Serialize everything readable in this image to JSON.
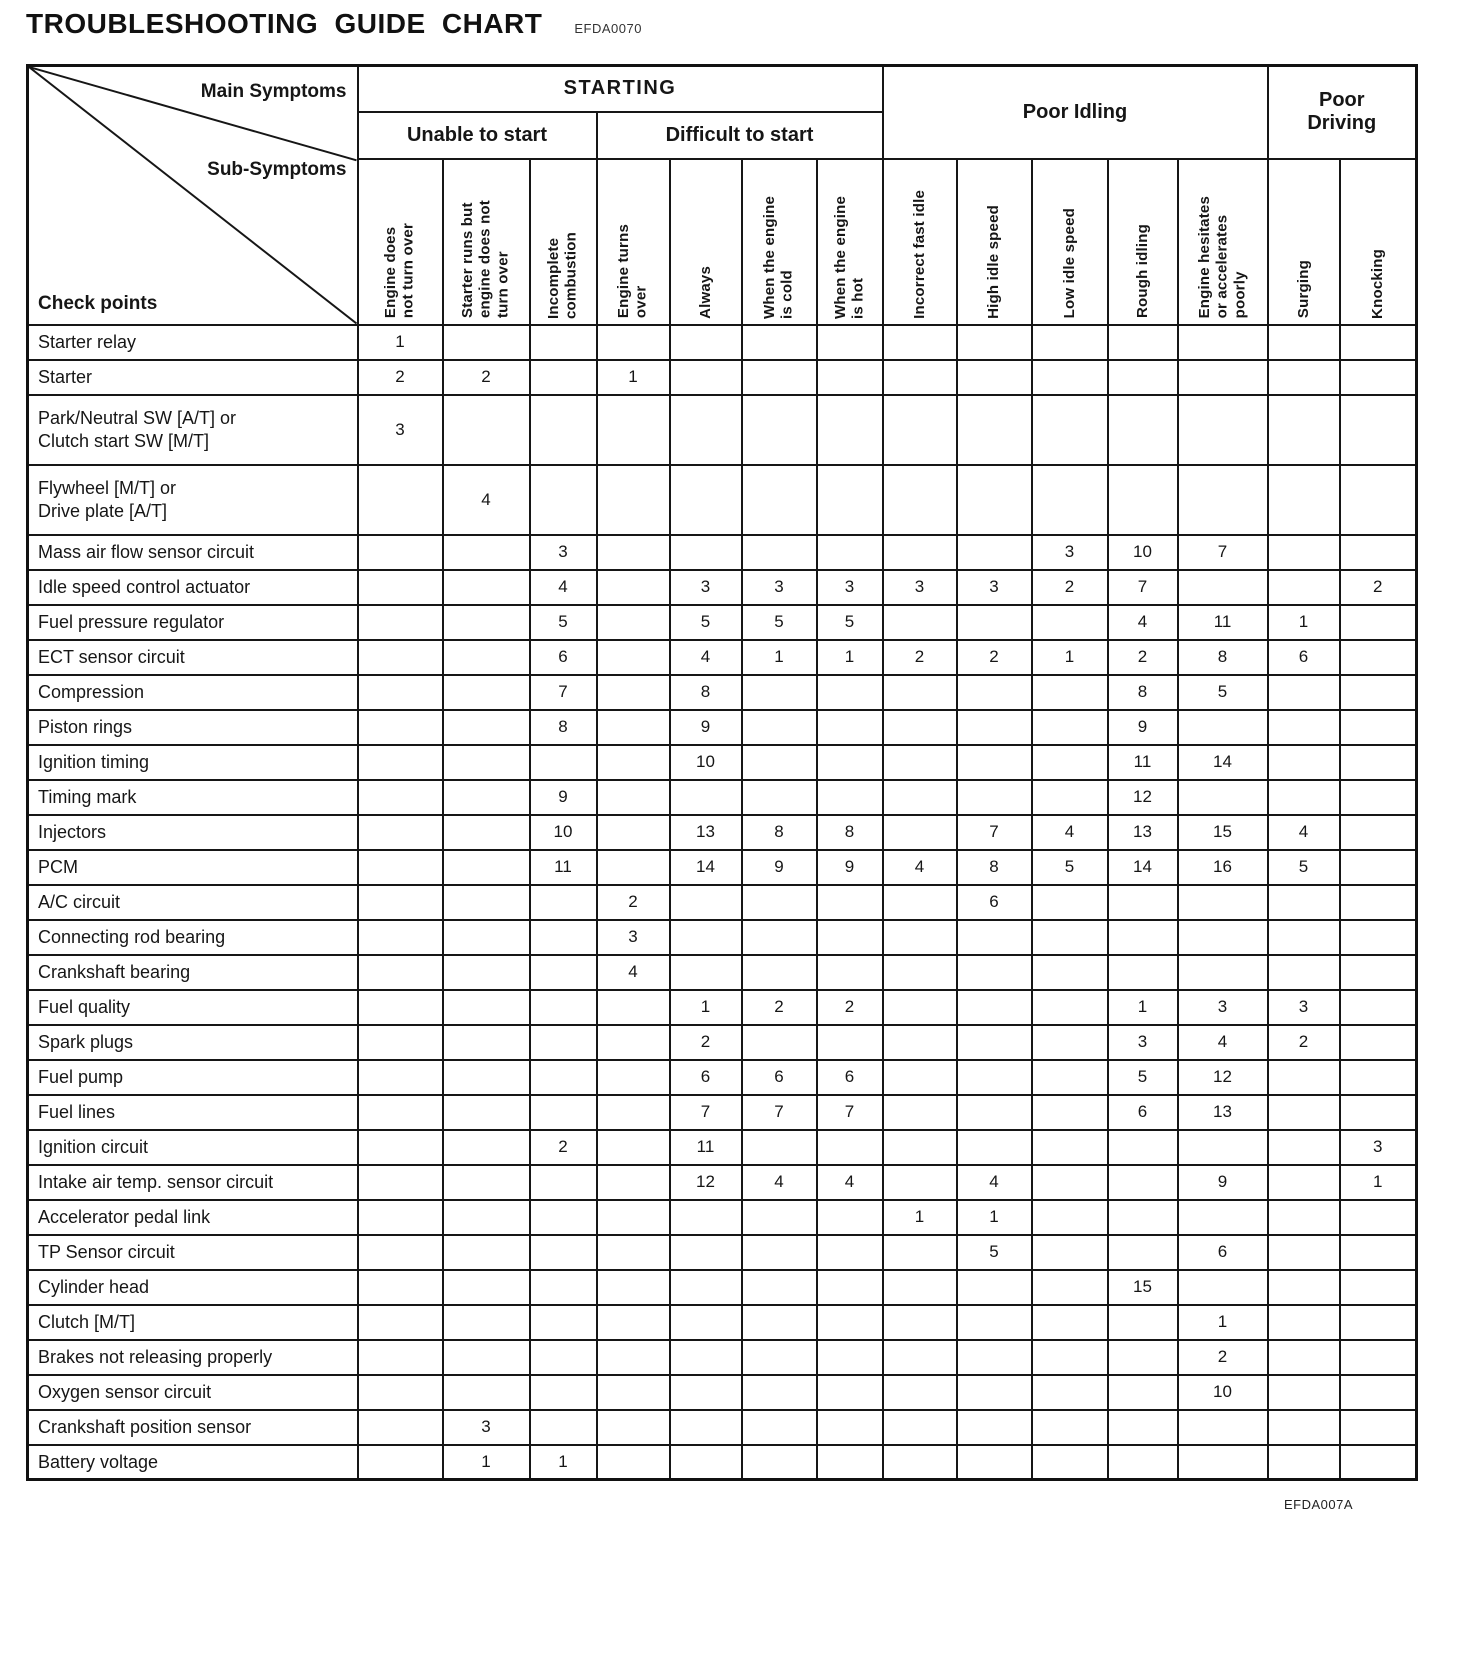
{
  "title": "TROUBLESHOOTING GUIDE CHART",
  "title_code": "EFDA0070",
  "footer_code": "EFDA007A",
  "corner": {
    "main_symptoms": "Main Symptoms",
    "sub_symptoms": "Sub-Symptoms",
    "check_points": "Check points"
  },
  "groups": {
    "starting": "STARTING",
    "unable_to_start": "Unable to start",
    "difficult_to_start": "Difficult to start",
    "poor_idling": "Poor Idling",
    "poor_driving": "Poor\nDriving"
  },
  "columns": [
    "Engine does\nnot turn over",
    "Starter runs but\nengine does not\nturn over",
    "Incomplete\ncombustion",
    "Engine turns\nover",
    "Always",
    "When the engine\nis cold",
    "When the engine\nis hot",
    "Incorrect fast idle",
    "High idle speed",
    "Low idle speed",
    "Rough idling",
    "Engine hesitates\nor accelerates\npoorly",
    "Surging",
    "Knocking"
  ],
  "rows": [
    {
      "label": "Starter relay",
      "values": [
        "1",
        "",
        "",
        "",
        "",
        "",
        "",
        "",
        "",
        "",
        "",
        "",
        "",
        ""
      ]
    },
    {
      "label": "Starter",
      "values": [
        "2",
        "2",
        "",
        "1",
        "",
        "",
        "",
        "",
        "",
        "",
        "",
        "",
        "",
        ""
      ]
    },
    {
      "label": "Park/Neutral SW [A/T] or\nClutch start SW [M/T]",
      "values": [
        "3",
        "",
        "",
        "",
        "",
        "",
        "",
        "",
        "",
        "",
        "",
        "",
        "",
        ""
      ]
    },
    {
      "label": "Flywheel [M/T] or\nDrive plate [A/T]",
      "values": [
        "",
        "4",
        "",
        "",
        "",
        "",
        "",
        "",
        "",
        "",
        "",
        "",
        "",
        ""
      ]
    },
    {
      "label": "Mass air flow sensor circuit",
      "values": [
        "",
        "",
        "3",
        "",
        "",
        "",
        "",
        "",
        "",
        "3",
        "10",
        "7",
        "",
        ""
      ]
    },
    {
      "label": "Idle speed control actuator",
      "values": [
        "",
        "",
        "4",
        "",
        "3",
        "3",
        "3",
        "3",
        "3",
        "2",
        "7",
        "",
        "",
        "2"
      ]
    },
    {
      "label": "Fuel pressure regulator",
      "values": [
        "",
        "",
        "5",
        "",
        "5",
        "5",
        "5",
        "",
        "",
        "",
        "4",
        "11",
        "1",
        ""
      ]
    },
    {
      "label": "ECT sensor circuit",
      "values": [
        "",
        "",
        "6",
        "",
        "4",
        "1",
        "1",
        "2",
        "2",
        "1",
        "2",
        "8",
        "6",
        ""
      ]
    },
    {
      "label": "Compression",
      "values": [
        "",
        "",
        "7",
        "",
        "8",
        "",
        "",
        "",
        "",
        "",
        "8",
        "5",
        "",
        ""
      ]
    },
    {
      "label": "Piston rings",
      "values": [
        "",
        "",
        "8",
        "",
        "9",
        "",
        "",
        "",
        "",
        "",
        "9",
        "",
        "",
        ""
      ]
    },
    {
      "label": "Ignition timing",
      "values": [
        "",
        "",
        "",
        "",
        "10",
        "",
        "",
        "",
        "",
        "",
        "11",
        "14",
        "",
        ""
      ]
    },
    {
      "label": "Timing mark",
      "values": [
        "",
        "",
        "9",
        "",
        "",
        "",
        "",
        "",
        "",
        "",
        "12",
        "",
        "",
        ""
      ]
    },
    {
      "label": "Injectors",
      "values": [
        "",
        "",
        "10",
        "",
        "13",
        "8",
        "8",
        "",
        "7",
        "4",
        "13",
        "15",
        "4",
        ""
      ]
    },
    {
      "label": "PCM",
      "values": [
        "",
        "",
        "11",
        "",
        "14",
        "9",
        "9",
        "4",
        "8",
        "5",
        "14",
        "16",
        "5",
        ""
      ]
    },
    {
      "label": "A/C circuit",
      "values": [
        "",
        "",
        "",
        "2",
        "",
        "",
        "",
        "",
        "6",
        "",
        "",
        "",
        "",
        ""
      ]
    },
    {
      "label": "Connecting rod bearing",
      "values": [
        "",
        "",
        "",
        "3",
        "",
        "",
        "",
        "",
        "",
        "",
        "",
        "",
        "",
        ""
      ]
    },
    {
      "label": "Crankshaft bearing",
      "values": [
        "",
        "",
        "",
        "4",
        "",
        "",
        "",
        "",
        "",
        "",
        "",
        "",
        "",
        ""
      ]
    },
    {
      "label": "Fuel quality",
      "values": [
        "",
        "",
        "",
        "",
        "1",
        "2",
        "2",
        "",
        "",
        "",
        "1",
        "3",
        "3",
        ""
      ]
    },
    {
      "label": "Spark plugs",
      "values": [
        "",
        "",
        "",
        "",
        "2",
        "",
        "",
        "",
        "",
        "",
        "3",
        "4",
        "2",
        ""
      ]
    },
    {
      "label": "Fuel pump",
      "values": [
        "",
        "",
        "",
        "",
        "6",
        "6",
        "6",
        "",
        "",
        "",
        "5",
        "12",
        "",
        ""
      ]
    },
    {
      "label": "Fuel lines",
      "values": [
        "",
        "",
        "",
        "",
        "7",
        "7",
        "7",
        "",
        "",
        "",
        "6",
        "13",
        "",
        ""
      ]
    },
    {
      "label": "Ignition circuit",
      "values": [
        "",
        "",
        "2",
        "",
        "11",
        "",
        "",
        "",
        "",
        "",
        "",
        "",
        "",
        "3"
      ]
    },
    {
      "label": "Intake air temp. sensor circuit",
      "values": [
        "",
        "",
        "",
        "",
        "12",
        "4",
        "4",
        "",
        "4",
        "",
        "",
        "9",
        "",
        "1"
      ]
    },
    {
      "label": "Accelerator pedal link",
      "values": [
        "",
        "",
        "",
        "",
        "",
        "",
        "",
        "1",
        "1",
        "",
        "",
        "",
        "",
        ""
      ]
    },
    {
      "label": "TP Sensor circuit",
      "values": [
        "",
        "",
        "",
        "",
        "",
        "",
        "",
        "",
        "5",
        "",
        "",
        "6",
        "",
        ""
      ]
    },
    {
      "label": "Cylinder head",
      "values": [
        "",
        "",
        "",
        "",
        "",
        "",
        "",
        "",
        "",
        "",
        "15",
        "",
        "",
        ""
      ]
    },
    {
      "label": "Clutch [M/T]",
      "values": [
        "",
        "",
        "",
        "",
        "",
        "",
        "",
        "",
        "",
        "",
        "",
        "1",
        "",
        ""
      ]
    },
    {
      "label": "Brakes not releasing properly",
      "values": [
        "",
        "",
        "",
        "",
        "",
        "",
        "",
        "",
        "",
        "",
        "",
        "2",
        "",
        ""
      ]
    },
    {
      "label": "Oxygen sensor circuit",
      "values": [
        "",
        "",
        "",
        "",
        "",
        "",
        "",
        "",
        "",
        "",
        "",
        "10",
        "",
        ""
      ]
    },
    {
      "label": "Crankshaft position sensor",
      "values": [
        "",
        "3",
        "",
        "",
        "",
        "",
        "",
        "",
        "",
        "",
        "",
        "",
        "",
        ""
      ]
    },
    {
      "label": "Battery voltage",
      "values": [
        "",
        "1",
        "1",
        "",
        "",
        "",
        "",
        "",
        "",
        "",
        "",
        "",
        "",
        ""
      ]
    }
  ]
}
